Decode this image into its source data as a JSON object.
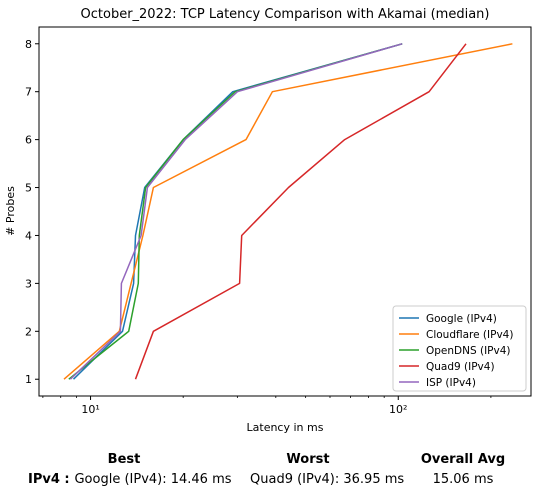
{
  "chart_data": {
    "type": "line",
    "title": "October_2022: TCP Latency Comparison with Akamai (median)",
    "xlabel": "Latency in ms",
    "ylabel": "# Probes",
    "xscale": "log",
    "xlim": [
      6.8,
      270
    ],
    "ylim": [
      0.65,
      8.35
    ],
    "x_ticks": [
      10,
      100
    ],
    "x_tick_labels": [
      "10¹",
      "10²"
    ],
    "y_ticks": [
      1,
      2,
      3,
      4,
      5,
      6,
      7,
      8
    ],
    "y_tick_labels": [
      "1",
      "2",
      "3",
      "4",
      "5",
      "6",
      "7",
      "8"
    ],
    "grid": false,
    "legend_position": "bottom-right",
    "series": [
      {
        "name": "Google (IPv4)",
        "color": "#1f77b4",
        "points": [
          [
            8.8,
            1
          ],
          [
            12.7,
            2
          ],
          [
            13.8,
            3
          ],
          [
            14.0,
            4
          ],
          [
            15.0,
            5
          ],
          [
            20.0,
            6
          ],
          [
            29.0,
            7
          ],
          [
            103.0,
            8
          ]
        ]
      },
      {
        "name": "Cloudflare (IPv4)",
        "color": "#ff7f0e",
        "points": [
          [
            8.2,
            1
          ],
          [
            12.4,
            2
          ],
          [
            14.8,
            4
          ],
          [
            16.0,
            5
          ],
          [
            32.0,
            6
          ],
          [
            39.0,
            7
          ],
          [
            235.0,
            8
          ]
        ]
      },
      {
        "name": "OpenDNS (IPv4)",
        "color": "#2ca02c",
        "points": [
          [
            8.5,
            1
          ],
          [
            13.3,
            2
          ],
          [
            14.3,
            3
          ],
          [
            14.4,
            4
          ],
          [
            15.1,
            5
          ],
          [
            20.0,
            6
          ],
          [
            29.5,
            7
          ],
          [
            103.0,
            8
          ]
        ]
      },
      {
        "name": "Quad9 (IPv4)",
        "color": "#d62728",
        "points": [
          [
            14.0,
            1
          ],
          [
            16.0,
            2
          ],
          [
            30.5,
            3
          ],
          [
            31.0,
            4
          ],
          [
            44.0,
            5
          ],
          [
            67.0,
            6
          ],
          [
            126.0,
            7
          ],
          [
            166.0,
            8
          ]
        ]
      },
      {
        "name": "ISP (IPv4)",
        "color": "#9467bd",
        "points": [
          [
            8.6,
            1
          ],
          [
            12.5,
            2
          ],
          [
            12.6,
            3
          ],
          [
            14.6,
            4
          ],
          [
            15.3,
            5
          ],
          [
            20.3,
            6
          ],
          [
            30.0,
            7
          ],
          [
            103.0,
            8
          ]
        ]
      }
    ]
  },
  "summary": {
    "headers": {
      "best": "Best",
      "worst": "Worst",
      "overall": "Overall Avg"
    },
    "row_label": "IPv4 :",
    "best": "Google (IPv4): 14.46 ms",
    "worst": "Quad9 (IPv4): 36.95 ms",
    "overall": "15.06 ms"
  }
}
